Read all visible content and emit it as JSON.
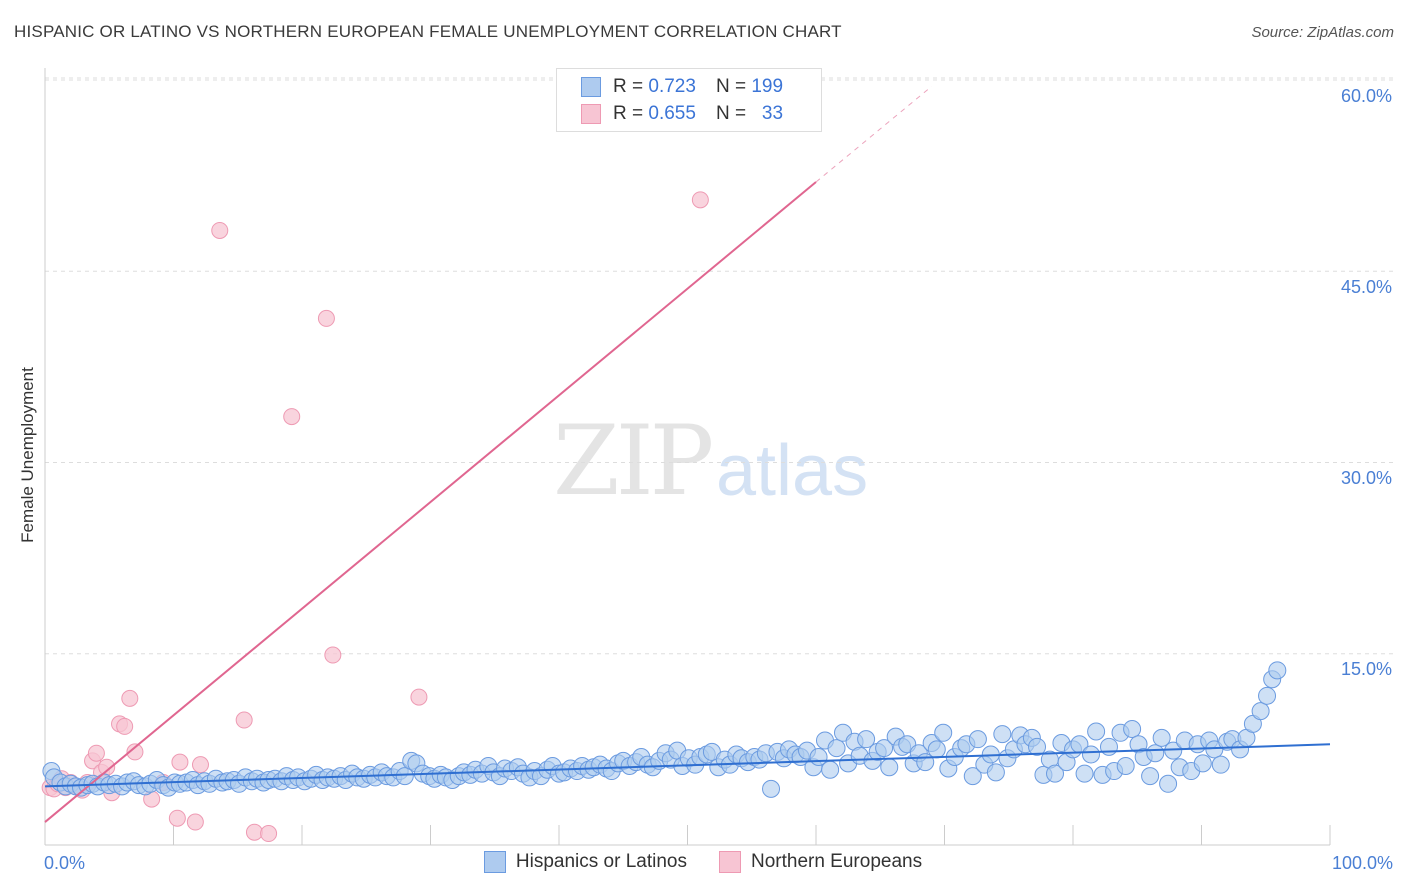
{
  "header": {
    "title": "HISPANIC OR LATINO VS NORTHERN EUROPEAN FEMALE UNEMPLOYMENT CORRELATION CHART",
    "source": "Source: ZipAtlas.com"
  },
  "legend": {
    "blue": {
      "r_label": "R =",
      "r_value": "0.723",
      "n_label": "N =",
      "n_value": "199"
    },
    "pink": {
      "r_label": "R =",
      "r_value": "0.655",
      "n_label": "N =",
      "n_value": "33"
    }
  },
  "watermark": {
    "zip": "ZIP",
    "atlas": "atlas"
  },
  "colors": {
    "blue_fill": "#aecbef",
    "blue_stroke": "#6b9be0",
    "blue_line": "#2f6fd1",
    "pink_fill": "#f7c5d3",
    "pink_stroke": "#ee9ab3",
    "pink_line": "#e06690",
    "grid": "#dddddd",
    "axis_text": "#4a7fd4"
  },
  "chart_data": {
    "type": "scatter",
    "title": "HISPANIC OR LATINO VS NORTHERN EUROPEAN FEMALE UNEMPLOYMENT CORRELATION CHART",
    "xlabel": "",
    "ylabel": "Female Unemployment",
    "xlim": [
      0,
      100
    ],
    "ylim": [
      0,
      60
    ],
    "x_tick_labels": [
      "0.0%",
      "100.0%"
    ],
    "y_tick_labels": [
      "15.0%",
      "30.0%",
      "45.0%",
      "60.0%"
    ],
    "y_ticks": [
      15,
      30,
      45,
      60
    ],
    "grid": true,
    "legend_placement": "bottom-center",
    "series": [
      {
        "name": "Hispanics or Latinos",
        "color": "#6b9be0",
        "r": 0.723,
        "n": 199,
        "trend": {
          "x": [
            0,
            100
          ],
          "y": [
            4.6,
            7.9
          ]
        },
        "points": [
          [
            0.5,
            5.8
          ],
          [
            0.7,
            5.3
          ],
          [
            1.2,
            4.9
          ],
          [
            1.6,
            4.6
          ],
          [
            2.0,
            4.8
          ],
          [
            2.4,
            4.6
          ],
          [
            2.8,
            4.5
          ],
          [
            3.3,
            4.7
          ],
          [
            3.7,
            4.8
          ],
          [
            4.1,
            4.6
          ],
          [
            4.6,
            4.9
          ],
          [
            5.0,
            4.7
          ],
          [
            5.5,
            4.8
          ],
          [
            6.0,
            4.6
          ],
          [
            6.4,
            4.9
          ],
          [
            6.9,
            5.0
          ],
          [
            7.3,
            4.7
          ],
          [
            7.8,
            4.6
          ],
          [
            8.2,
            4.8
          ],
          [
            8.7,
            5.1
          ],
          [
            9.2,
            4.7
          ],
          [
            9.6,
            4.5
          ],
          [
            10.1,
            4.9
          ],
          [
            10.5,
            4.8
          ],
          [
            11.0,
            4.9
          ],
          [
            11.5,
            5.1
          ],
          [
            11.9,
            4.7
          ],
          [
            12.4,
            5.0
          ],
          [
            12.8,
            4.8
          ],
          [
            13.3,
            5.2
          ],
          [
            13.8,
            4.9
          ],
          [
            14.2,
            5.0
          ],
          [
            14.7,
            5.1
          ],
          [
            15.1,
            4.8
          ],
          [
            15.6,
            5.3
          ],
          [
            16.1,
            5.0
          ],
          [
            16.5,
            5.2
          ],
          [
            17.0,
            4.9
          ],
          [
            17.4,
            5.1
          ],
          [
            17.9,
            5.2
          ],
          [
            18.4,
            5.0
          ],
          [
            18.8,
            5.4
          ],
          [
            19.3,
            5.1
          ],
          [
            19.7,
            5.3
          ],
          [
            20.2,
            5.0
          ],
          [
            20.7,
            5.2
          ],
          [
            21.1,
            5.5
          ],
          [
            21.6,
            5.1
          ],
          [
            22.0,
            5.3
          ],
          [
            22.5,
            5.2
          ],
          [
            23.0,
            5.4
          ],
          [
            23.4,
            5.1
          ],
          [
            23.9,
            5.6
          ],
          [
            24.3,
            5.3
          ],
          [
            24.8,
            5.2
          ],
          [
            25.3,
            5.5
          ],
          [
            25.7,
            5.3
          ],
          [
            26.2,
            5.7
          ],
          [
            26.6,
            5.4
          ],
          [
            27.1,
            5.3
          ],
          [
            27.6,
            5.8
          ],
          [
            28.0,
            5.4
          ],
          [
            28.5,
            6.6
          ],
          [
            28.9,
            6.4
          ],
          [
            29.4,
            5.6
          ],
          [
            29.9,
            5.4
          ],
          [
            30.3,
            5.2
          ],
          [
            30.8,
            5.5
          ],
          [
            31.2,
            5.3
          ],
          [
            31.7,
            5.1
          ],
          [
            32.2,
            5.4
          ],
          [
            32.6,
            5.7
          ],
          [
            33.1,
            5.5
          ],
          [
            33.5,
            5.9
          ],
          [
            34.0,
            5.6
          ],
          [
            34.5,
            6.2
          ],
          [
            34.9,
            5.7
          ],
          [
            35.4,
            5.4
          ],
          [
            35.8,
            6.0
          ],
          [
            36.3,
            5.8
          ],
          [
            36.8,
            6.1
          ],
          [
            37.2,
            5.6
          ],
          [
            37.7,
            5.3
          ],
          [
            38.1,
            5.8
          ],
          [
            38.6,
            5.4
          ],
          [
            39.1,
            5.9
          ],
          [
            39.5,
            6.2
          ],
          [
            40.0,
            5.6
          ],
          [
            40.4,
            5.7
          ],
          [
            40.9,
            6.0
          ],
          [
            41.4,
            5.8
          ],
          [
            41.8,
            6.2
          ],
          [
            42.3,
            5.9
          ],
          [
            42.7,
            6.1
          ],
          [
            43.2,
            6.3
          ],
          [
            43.7,
            6.0
          ],
          [
            44.1,
            5.8
          ],
          [
            44.6,
            6.4
          ],
          [
            45.0,
            6.6
          ],
          [
            45.5,
            6.2
          ],
          [
            46.0,
            6.5
          ],
          [
            46.4,
            6.9
          ],
          [
            46.9,
            6.3
          ],
          [
            47.3,
            6.1
          ],
          [
            47.8,
            6.6
          ],
          [
            48.3,
            7.2
          ],
          [
            48.7,
            6.7
          ],
          [
            49.2,
            7.4
          ],
          [
            49.6,
            6.2
          ],
          [
            50.1,
            6.8
          ],
          [
            50.6,
            6.3
          ],
          [
            51.0,
            6.9
          ],
          [
            51.5,
            7.1
          ],
          [
            51.9,
            7.3
          ],
          [
            52.4,
            6.1
          ],
          [
            52.9,
            6.7
          ],
          [
            53.3,
            6.3
          ],
          [
            53.8,
            7.1
          ],
          [
            54.2,
            6.8
          ],
          [
            54.7,
            6.5
          ],
          [
            55.2,
            6.9
          ],
          [
            55.6,
            6.7
          ],
          [
            56.1,
            7.2
          ],
          [
            56.5,
            4.4
          ],
          [
            57.0,
            7.3
          ],
          [
            57.5,
            6.8
          ],
          [
            57.9,
            7.5
          ],
          [
            58.4,
            7.1
          ],
          [
            58.8,
            6.9
          ],
          [
            59.3,
            7.4
          ],
          [
            59.8,
            6.1
          ],
          [
            60.2,
            6.9
          ],
          [
            60.7,
            8.2
          ],
          [
            61.1,
            5.9
          ],
          [
            61.6,
            7.6
          ],
          [
            62.1,
            8.8
          ],
          [
            62.5,
            6.4
          ],
          [
            63.0,
            8.1
          ],
          [
            63.4,
            7.0
          ],
          [
            63.9,
            8.3
          ],
          [
            64.4,
            6.6
          ],
          [
            64.8,
            7.3
          ],
          [
            65.3,
            7.6
          ],
          [
            65.7,
            6.1
          ],
          [
            66.2,
            8.5
          ],
          [
            66.7,
            7.7
          ],
          [
            67.1,
            7.9
          ],
          [
            67.6,
            6.4
          ],
          [
            68.0,
            7.2
          ],
          [
            68.5,
            6.5
          ],
          [
            69.0,
            8.0
          ],
          [
            69.4,
            7.5
          ],
          [
            69.9,
            8.8
          ],
          [
            70.3,
            6.0
          ],
          [
            70.8,
            6.9
          ],
          [
            71.3,
            7.6
          ],
          [
            71.7,
            7.9
          ],
          [
            72.2,
            5.4
          ],
          [
            72.6,
            8.3
          ],
          [
            73.1,
            6.3
          ],
          [
            73.6,
            7.1
          ],
          [
            74.0,
            5.7
          ],
          [
            74.5,
            8.7
          ],
          [
            74.9,
            6.8
          ],
          [
            75.4,
            7.5
          ],
          [
            75.9,
            8.6
          ],
          [
            76.3,
            7.9
          ],
          [
            76.8,
            8.4
          ],
          [
            77.2,
            7.7
          ],
          [
            77.7,
            5.5
          ],
          [
            78.2,
            6.7
          ],
          [
            78.6,
            5.6
          ],
          [
            79.1,
            8.0
          ],
          [
            79.5,
            6.5
          ],
          [
            80.0,
            7.5
          ],
          [
            80.5,
            7.9
          ],
          [
            80.9,
            5.6
          ],
          [
            81.4,
            7.1
          ],
          [
            81.8,
            8.9
          ],
          [
            82.3,
            5.5
          ],
          [
            82.8,
            7.7
          ],
          [
            83.2,
            5.8
          ],
          [
            83.7,
            8.8
          ],
          [
            84.1,
            6.2
          ],
          [
            84.6,
            9.1
          ],
          [
            85.1,
            7.9
          ],
          [
            85.5,
            6.9
          ],
          [
            86.0,
            5.4
          ],
          [
            86.4,
            7.2
          ],
          [
            86.9,
            8.4
          ],
          [
            87.4,
            4.8
          ],
          [
            87.8,
            7.4
          ],
          [
            88.3,
            6.1
          ],
          [
            88.7,
            8.2
          ],
          [
            89.2,
            5.8
          ],
          [
            89.7,
            7.9
          ],
          [
            90.1,
            6.4
          ],
          [
            90.6,
            8.2
          ],
          [
            91.0,
            7.5
          ],
          [
            91.5,
            6.3
          ],
          [
            92.0,
            8.1
          ],
          [
            92.4,
            8.3
          ],
          [
            93.0,
            7.5
          ],
          [
            93.5,
            8.4
          ],
          [
            94.0,
            9.5
          ],
          [
            94.6,
            10.5
          ],
          [
            95.1,
            11.7
          ],
          [
            95.5,
            13.0
          ],
          [
            95.9,
            13.7
          ]
        ]
      },
      {
        "name": "Northern Europeans",
        "color": "#ee9ab3",
        "r": 0.655,
        "n": 33,
        "trend": {
          "x": [
            0,
            60
          ],
          "y": [
            1.8,
            52
          ]
        },
        "trend_dashed": {
          "x": [
            60,
            69
          ],
          "y": [
            52,
            59.5
          ]
        },
        "points": [
          [
            0.4,
            4.5
          ],
          [
            0.7,
            4.4
          ],
          [
            1.0,
            4.8
          ],
          [
            1.3,
            5.2
          ],
          [
            1.6,
            4.5
          ],
          [
            2.0,
            4.9
          ],
          [
            2.4,
            4.6
          ],
          [
            2.9,
            4.3
          ],
          [
            3.3,
            4.9
          ],
          [
            3.7,
            6.6
          ],
          [
            4.0,
            7.2
          ],
          [
            4.4,
            5.7
          ],
          [
            4.8,
            6.1
          ],
          [
            5.2,
            4.1
          ],
          [
            5.8,
            9.5
          ],
          [
            6.2,
            9.3
          ],
          [
            6.6,
            11.5
          ],
          [
            7.0,
            7.3
          ],
          [
            8.3,
            3.6
          ],
          [
            9.2,
            4.9
          ],
          [
            10.3,
            2.1
          ],
          [
            10.5,
            6.5
          ],
          [
            11.7,
            1.8
          ],
          [
            12.1,
            6.3
          ],
          [
            13.6,
            48.2
          ],
          [
            15.5,
            9.8
          ],
          [
            16.3,
            1.0
          ],
          [
            17.4,
            0.9
          ],
          [
            19.2,
            33.6
          ],
          [
            21.9,
            41.3
          ],
          [
            22.4,
            14.9
          ],
          [
            29.1,
            11.6
          ],
          [
            51.0,
            50.6
          ]
        ]
      }
    ]
  },
  "bottom_legend": {
    "blue_label": "Hispanics or Latinos",
    "pink_label": "Northern Europeans"
  }
}
